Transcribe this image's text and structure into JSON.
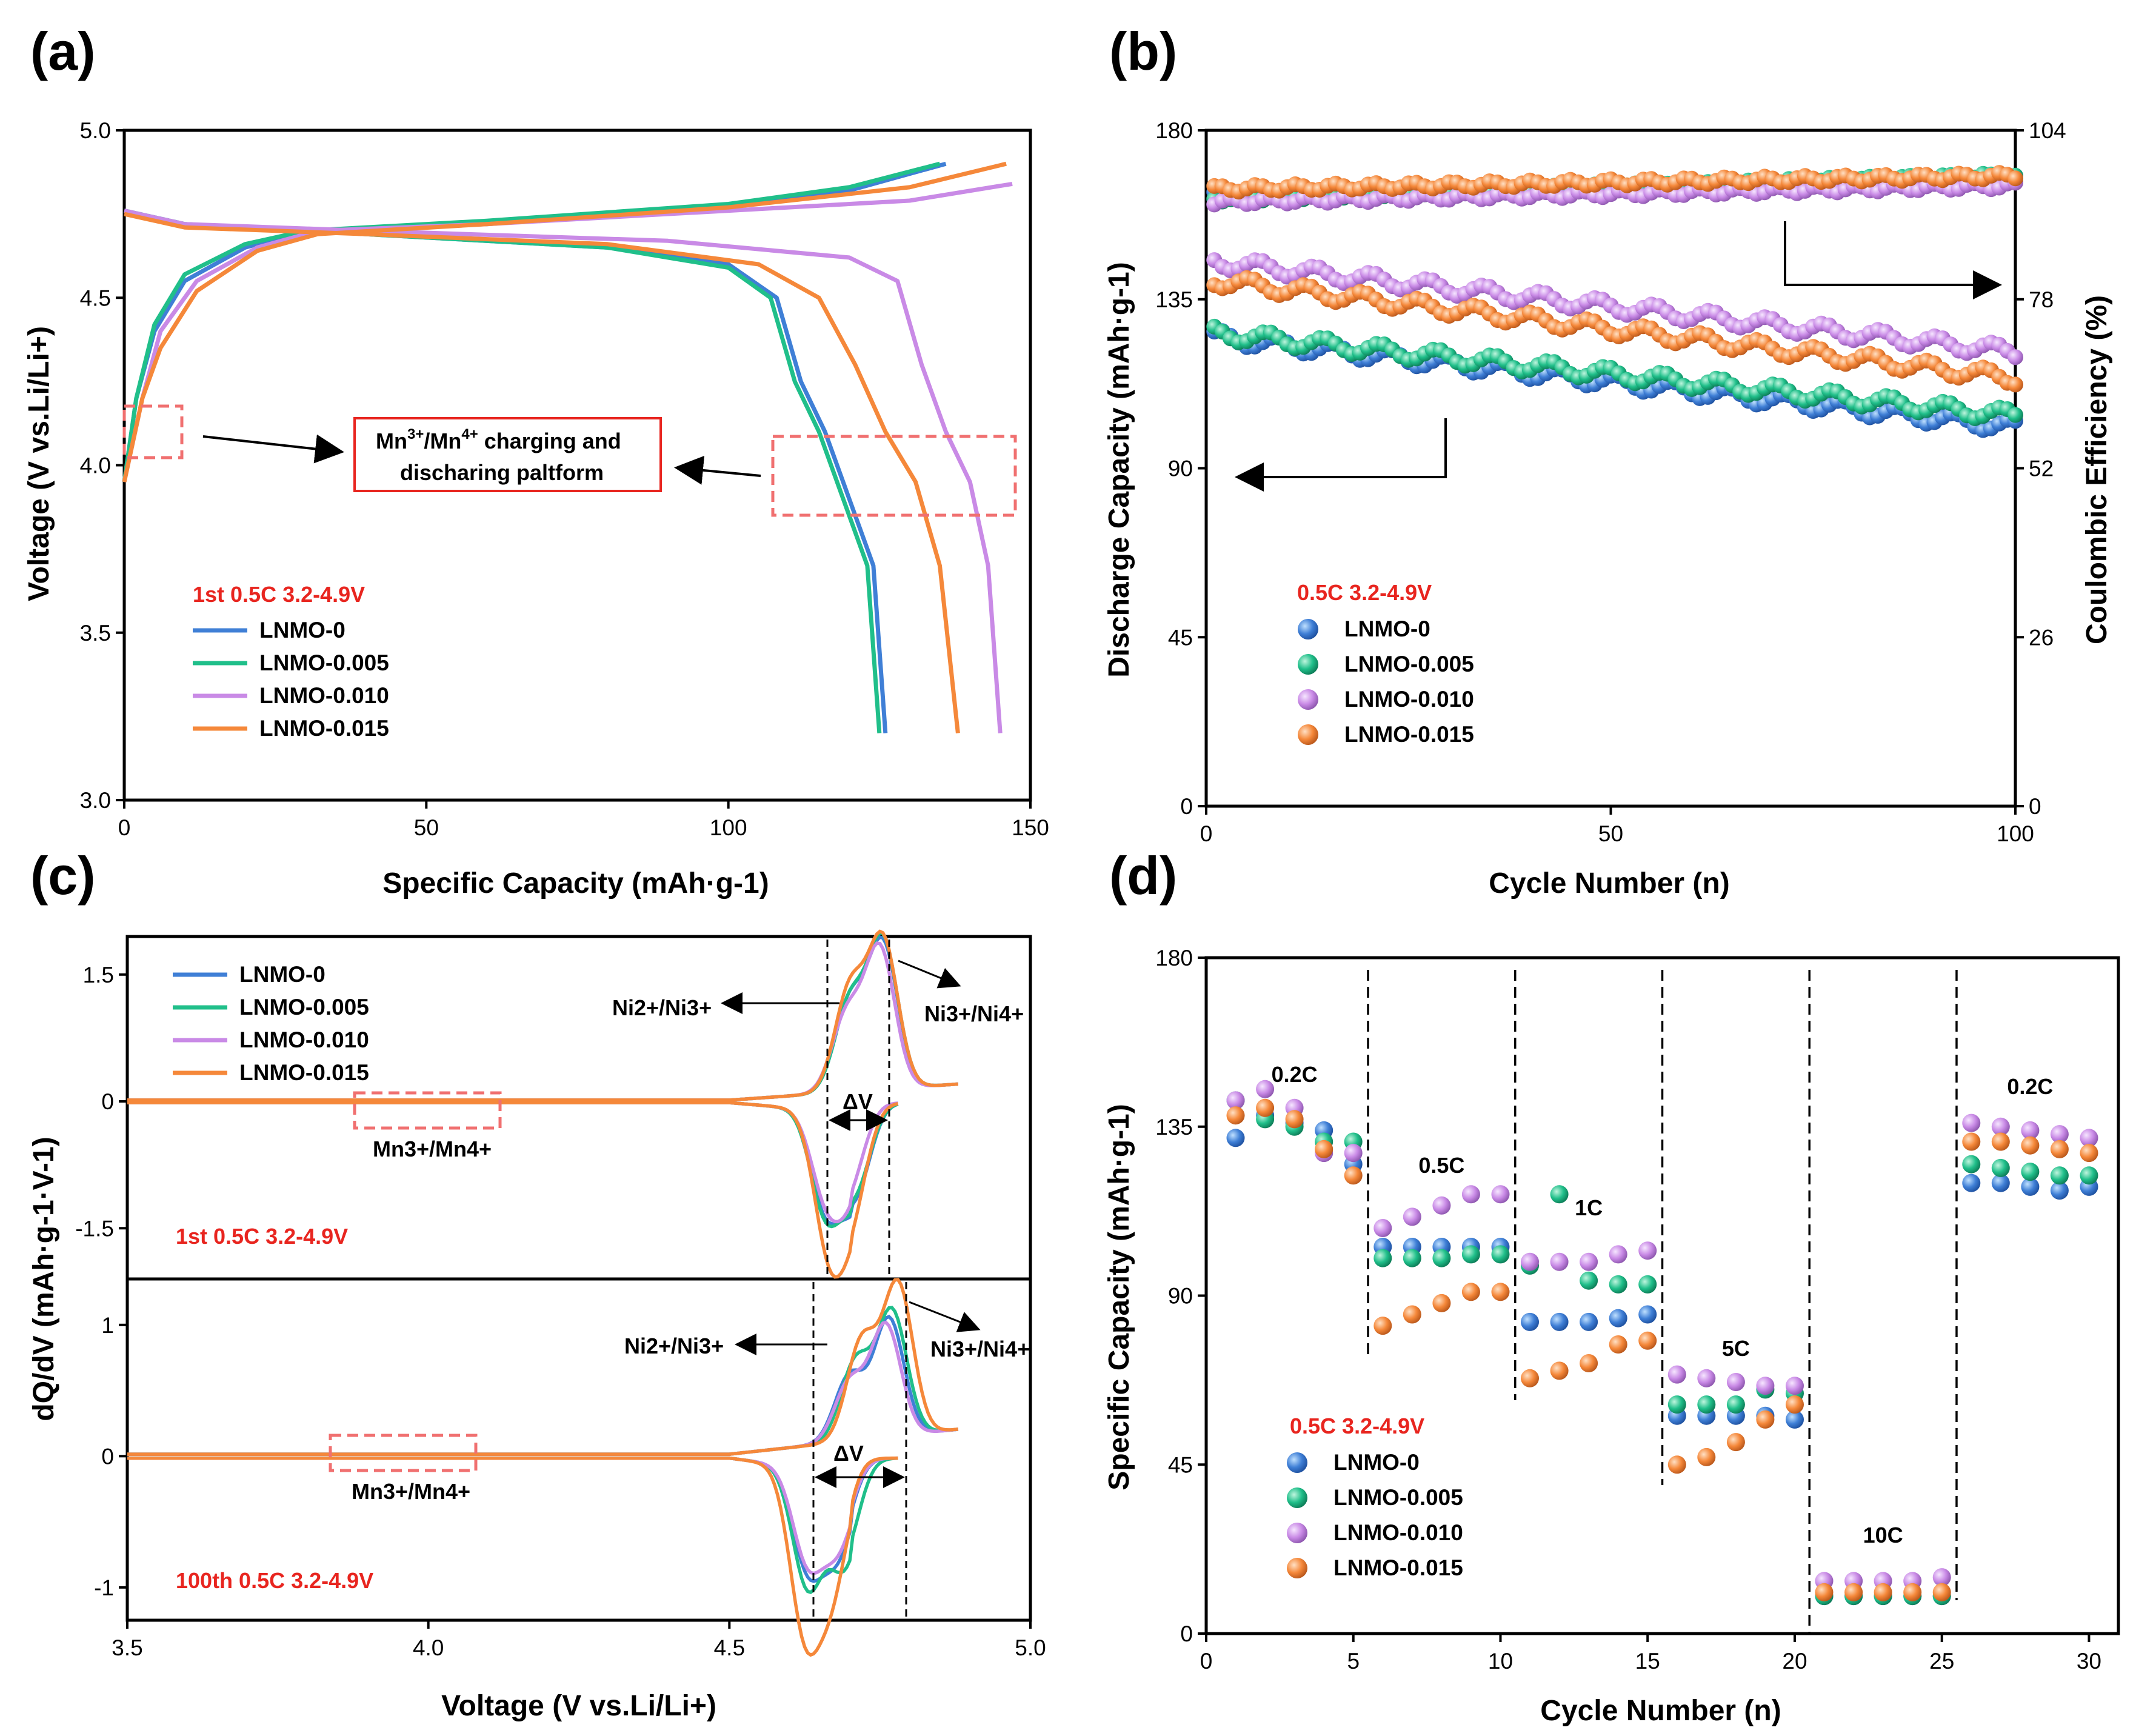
{
  "colors": {
    "LNMO-0": "#3f7fd6",
    "LNMO-0.005": "#20bf8a",
    "LNMO-0.010": "#c98ae6",
    "LNMO-0.015": "#f5883a",
    "condition": "#e8251f",
    "box": "#f07070"
  },
  "chart_data": [
    {
      "panel": "(a)",
      "type": "line",
      "xlabel": "Specific Capacity (mAh·g-1)",
      "ylabel": "Voltage (V vs.Li/Li+)",
      "xlim": [
        0,
        150
      ],
      "ylim": [
        3.0,
        5.0
      ],
      "xticks": [
        "0",
        "50",
        "100",
        "150"
      ],
      "yticks": [
        "3.0",
        "3.5",
        "4.0",
        "4.5",
        "5.0"
      ],
      "condition": "1st 0.5C 3.2-4.9V",
      "legend": [
        "LNMO-0",
        "LNMO-0.005",
        "LNMO-0.010",
        "LNMO-0.015"
      ],
      "annotation": {
        "line1": "Mn3+/Mn4+ charging and",
        "line2": "discharing paltform",
        "ion1": "Mn",
        "ox1": "3+",
        "sep": "/Mn",
        "ox2": "4+",
        "rest1": " charging and"
      },
      "series": [
        {
          "name": "LNMO-0",
          "charge": [
            [
              0,
              3.95
            ],
            [
              2,
              4.2
            ],
            [
              5,
              4.4
            ],
            [
              10,
              4.55
            ],
            [
              20,
              4.65
            ],
            [
              30,
              4.7
            ],
            [
              60,
              4.72
            ],
            [
              100,
              4.77
            ],
            [
              120,
              4.82
            ],
            [
              136,
              4.9
            ]
          ],
          "discharge": [
            [
              0,
              4.76
            ],
            [
              10,
              4.72
            ],
            [
              40,
              4.69
            ],
            [
              80,
              4.65
            ],
            [
              100,
              4.6
            ],
            [
              108,
              4.5
            ],
            [
              112,
              4.25
            ],
            [
              116,
              4.1
            ],
            [
              120,
              3.9
            ],
            [
              124,
              3.7
            ],
            [
              126,
              3.2
            ]
          ]
        },
        {
          "name": "LNMO-0.005",
          "charge": [
            [
              0,
              3.95
            ],
            [
              2,
              4.2
            ],
            [
              5,
              4.42
            ],
            [
              10,
              4.57
            ],
            [
              20,
              4.66
            ],
            [
              30,
              4.7
            ],
            [
              60,
              4.73
            ],
            [
              100,
              4.78
            ],
            [
              120,
              4.83
            ],
            [
              135,
              4.9
            ]
          ],
          "discharge": [
            [
              0,
              4.76
            ],
            [
              10,
              4.72
            ],
            [
              40,
              4.69
            ],
            [
              80,
              4.65
            ],
            [
              100,
              4.59
            ],
            [
              107,
              4.5
            ],
            [
              111,
              4.25
            ],
            [
              115,
              4.1
            ],
            [
              119,
              3.9
            ],
            [
              123,
              3.7
            ],
            [
              125,
              3.2
            ]
          ]
        },
        {
          "name": "LNMO-0.010",
          "charge": [
            [
              0,
              3.95
            ],
            [
              3,
              4.2
            ],
            [
              6,
              4.4
            ],
            [
              12,
              4.55
            ],
            [
              22,
              4.65
            ],
            [
              32,
              4.7
            ],
            [
              60,
              4.72
            ],
            [
              100,
              4.76
            ],
            [
              130,
              4.79
            ],
            [
              147,
              4.84
            ]
          ],
          "discharge": [
            [
              0,
              4.76
            ],
            [
              10,
              4.72
            ],
            [
              40,
              4.7
            ],
            [
              90,
              4.67
            ],
            [
              120,
              4.62
            ],
            [
              128,
              4.55
            ],
            [
              132,
              4.3
            ],
            [
              136,
              4.1
            ],
            [
              140,
              3.95
            ],
            [
              143,
              3.7
            ],
            [
              145,
              3.2
            ]
          ]
        },
        {
          "name": "LNMO-0.015",
          "charge": [
            [
              0,
              3.95
            ],
            [
              3,
              4.2
            ],
            [
              6,
              4.35
            ],
            [
              12,
              4.52
            ],
            [
              22,
              4.64
            ],
            [
              32,
              4.69
            ],
            [
              60,
              4.72
            ],
            [
              100,
              4.77
            ],
            [
              130,
              4.83
            ],
            [
              146,
              4.9
            ]
          ],
          "discharge": [
            [
              0,
              4.75
            ],
            [
              10,
              4.71
            ],
            [
              40,
              4.69
            ],
            [
              80,
              4.66
            ],
            [
              105,
              4.6
            ],
            [
              115,
              4.5
            ],
            [
              121,
              4.3
            ],
            [
              126,
              4.1
            ],
            [
              131,
              3.95
            ],
            [
              135,
              3.7
            ],
            [
              138,
              3.2
            ]
          ]
        }
      ]
    },
    {
      "panel": "(b)",
      "type": "scatter",
      "xlabel": "Cycle Number (n)",
      "ylabel": "Discharge Capacity (mAh·g-1)",
      "y2label": "Coulombic Efficiency (%)",
      "xlim": [
        0,
        100
      ],
      "ylim": [
        0,
        180
      ],
      "y2lim": [
        0,
        104
      ],
      "xticks": [
        "0",
        "50",
        "100"
      ],
      "yticks": [
        "0",
        "45",
        "90",
        "135",
        "180"
      ],
      "y2ticks": [
        "0",
        "26",
        "52",
        "78",
        "104"
      ],
      "condition": "0.5C  3.2-4.9V",
      "legend": [
        "LNMO-0",
        "LNMO-0.005",
        "LNMO-0.010",
        "LNMO-0.015"
      ],
      "series": [
        {
          "name": "LNMO-0",
          "capacity_start": 125,
          "capacity_end": 101,
          "ce_start": 94,
          "ce_end": 96.5
        },
        {
          "name": "LNMO-0.005",
          "capacity_start": 126,
          "capacity_end": 104,
          "ce_start": 93.5,
          "ce_end": 97
        },
        {
          "name": "LNMO-0.010",
          "capacity_start": 145,
          "capacity_end": 121,
          "ce_start": 93,
          "ce_end": 95.5
        },
        {
          "name": "LNMO-0.015",
          "capacity_start": 140,
          "capacity_end": 114,
          "ce_start": 95,
          "ce_end": 97
        }
      ]
    },
    {
      "panel": "(c)",
      "type": "line",
      "xlabel": "Voltage (V vs.Li/Li+)",
      "ylabel": "dQ/dV (mAh·g-1·V-1)",
      "xlim": [
        3.5,
        5.0
      ],
      "xticks": [
        "3.5",
        "4.0",
        "4.5",
        "5.0"
      ],
      "top": {
        "ylim": [
          -2.1,
          1.95
        ],
        "yticks": [
          "-1.5",
          "0",
          "1.5"
        ],
        "condition": "1st 0.5C 3.2-4.9V",
        "ox_label": "Ni2+/Ni3+",
        "red_label": "Ni3+/Ni4+",
        "delta": "ΔV",
        "mn": "Mn3+/Mn4+"
      },
      "bottom": {
        "ylim": [
          -1.25,
          1.35
        ],
        "yticks": [
          "-1",
          "0",
          "1"
        ],
        "condition": "100th 0.5C 3.2-4.9V",
        "ox_label": "Ni2+/Ni3+",
        "red_label": "Ni3+/Ni4+",
        "delta": "ΔV",
        "mn": "Mn3+/Mn4+"
      },
      "legend": [
        "LNMO-0",
        "LNMO-0.005",
        "LNMO-0.010",
        "LNMO-0.015"
      ]
    },
    {
      "panel": "(d)",
      "type": "scatter",
      "xlabel": "Cycle Number (n)",
      "ylabel": "Specific Capacity (mAh·g-1)",
      "xlim": [
        0,
        31
      ],
      "ylim": [
        0,
        180
      ],
      "xticks": [
        "0",
        "5",
        "10",
        "15",
        "20",
        "25",
        "30"
      ],
      "yticks": [
        "0",
        "45",
        "90",
        "135",
        "180"
      ],
      "rates": [
        "0.2C",
        "0.5C",
        "1C",
        "5C",
        "10C",
        "0.2C"
      ],
      "condition": "0.5C 3.2-4.9V",
      "legend": [
        "LNMO-0",
        "LNMO-0.005",
        "LNMO-0.010",
        "LNMO-0.015"
      ],
      "series": [
        {
          "name": "LNMO-0",
          "values": [
            132,
            138,
            136,
            134,
            125,
            103,
            103,
            103,
            103,
            103,
            83,
            83,
            83,
            84,
            85,
            58,
            58,
            58,
            58,
            57,
            10,
            10,
            10,
            10,
            10,
            120,
            120,
            119,
            118,
            119
          ]
        },
        {
          "name": "LNMO-0.005",
          "values": [
            142,
            137,
            135,
            131,
            131,
            100,
            100,
            100,
            101,
            101,
            98,
            117,
            94,
            93,
            93,
            61,
            61,
            61,
            65,
            64,
            10,
            10,
            10,
            10,
            10,
            125,
            124,
            123,
            122,
            122
          ]
        },
        {
          "name": "LNMO-0.010",
          "values": [
            142,
            145,
            140,
            128,
            128,
            108,
            111,
            114,
            117,
            117,
            99,
            99,
            99,
            101,
            102,
            69,
            68,
            67,
            66,
            66,
            14,
            14,
            14,
            14,
            15,
            136,
            135,
            134,
            133,
            132
          ]
        },
        {
          "name": "LNMO-0.015",
          "values": [
            138,
            140,
            137,
            129,
            122,
            82,
            85,
            88,
            91,
            91,
            68,
            70,
            72,
            77,
            78,
            45,
            47,
            51,
            57,
            61,
            11,
            11,
            11,
            11,
            11,
            131,
            131,
            130,
            129,
            128
          ]
        }
      ]
    }
  ]
}
